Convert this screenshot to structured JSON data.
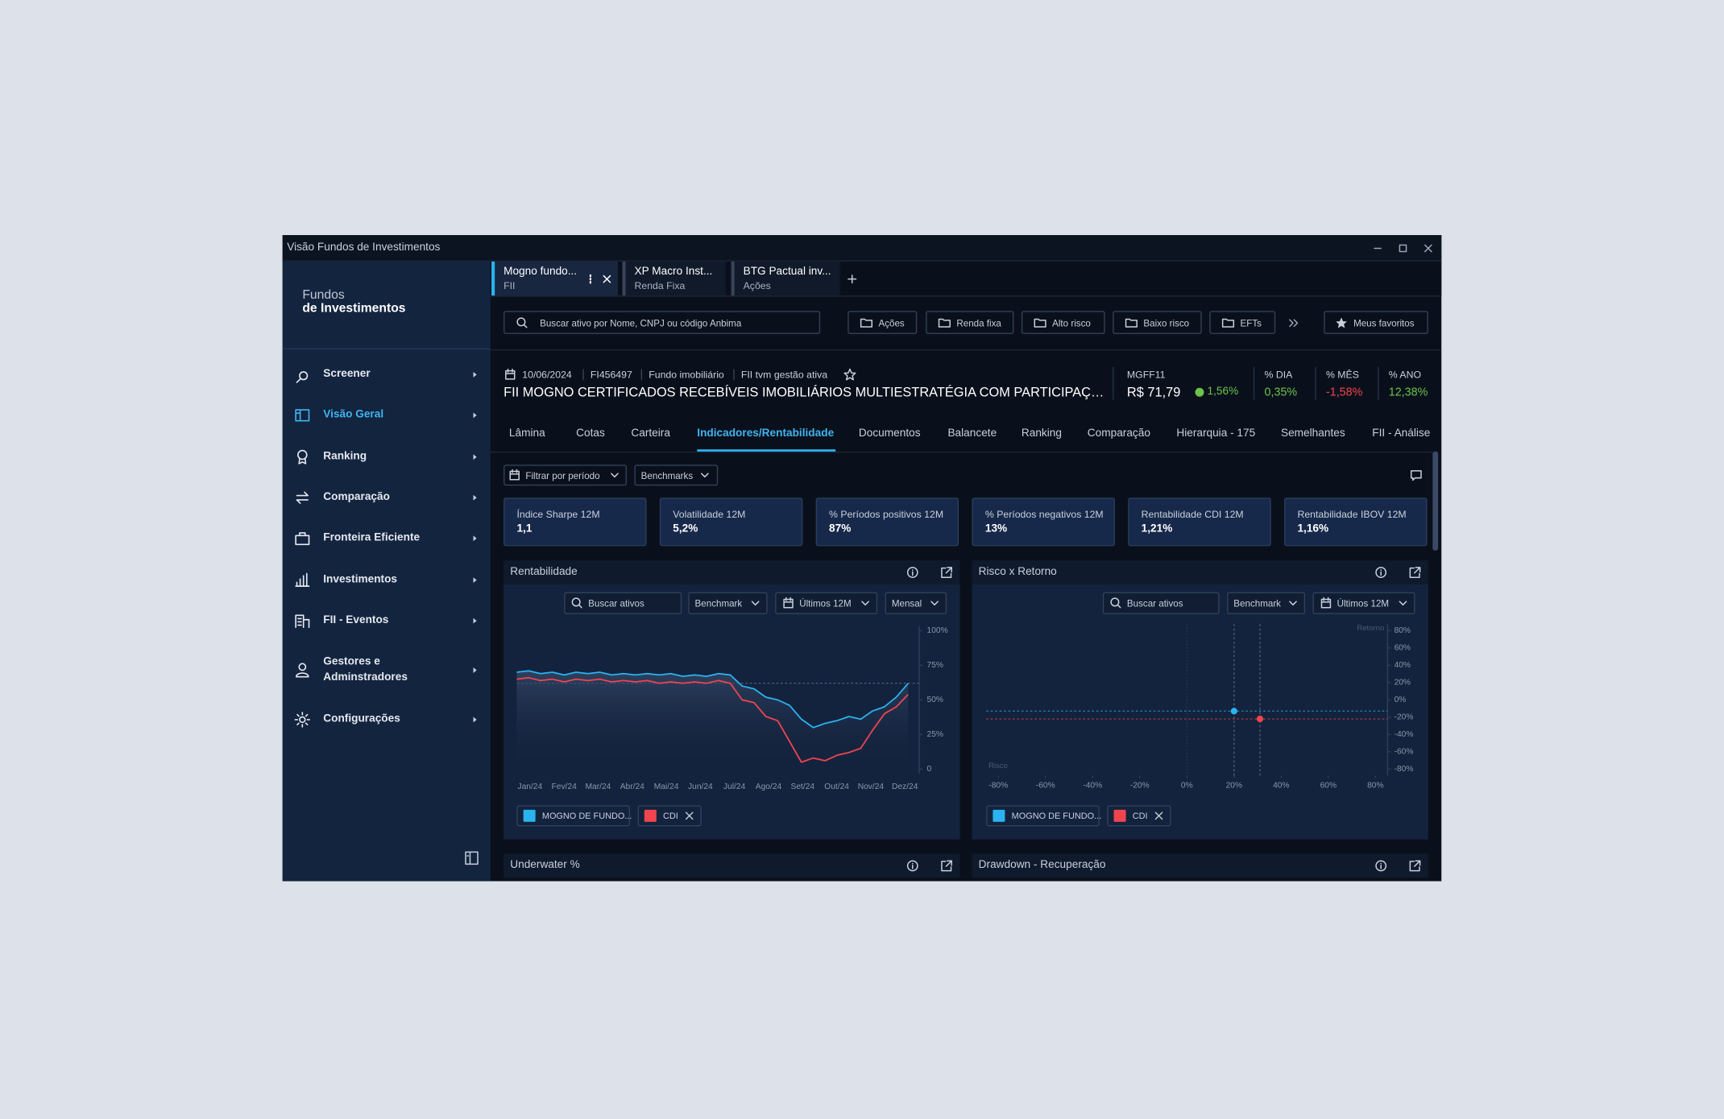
{
  "window": {
    "title": "Visão Fundos de Investimentos"
  },
  "sidebar": {
    "brand": {
      "line1": "Fundos",
      "line2": "de Investimentos"
    },
    "items": [
      {
        "label": "Screener"
      },
      {
        "label": "Visão Geral",
        "active": true
      },
      {
        "label": "Ranking"
      },
      {
        "label": "Comparação"
      },
      {
        "label": "Fronteira Eficiente"
      },
      {
        "label": "Investimentos"
      },
      {
        "label": "FII - Eventos"
      },
      {
        "label": "Gestores e Adminstradores"
      },
      {
        "label": "Configurações"
      }
    ]
  },
  "tabs": [
    {
      "title": "Mogno fundo...",
      "subtitle": "FII",
      "active": true
    },
    {
      "title": "XP Macro Inst...",
      "subtitle": "Renda Fixa"
    },
    {
      "title": "BTG Pactual inv...",
      "subtitle": "Ações"
    }
  ],
  "search": {
    "placeholder": "Buscar ativo por Nome, CNPJ ou código Anbima"
  },
  "filters": [
    "Ações",
    "Renda fixa",
    "Alto risco",
    "Baixo risco",
    "EFTs"
  ],
  "favorites": "Meus favoritos",
  "fund": {
    "date": "10/06/2024",
    "code": "FI456497",
    "category": "Fundo imobiliário",
    "management": "FII tvm gestão ativa",
    "name": "FII MOGNO CERTIFICADOS RECEBÍVEIS IMOBILIÁRIOS MULTIESTRATÉGIA COM PARTICIPAÇÃO...",
    "ticker": "MGFF11",
    "price": "R$ 71,79",
    "change": "1,56%",
    "stats": [
      {
        "label": "% DIA",
        "value": "0,35%",
        "color": "#6cc24a"
      },
      {
        "label": "% MÊS",
        "value": "-1,58%",
        "color": "#f0454f"
      },
      {
        "label": "% ANO",
        "value": "12,38%",
        "color": "#6cc24a"
      }
    ]
  },
  "nav": {
    "items": [
      "Lâmina",
      "Cotas",
      "Carteira",
      "Indicadores/Rentabilidade",
      "Documentos",
      "Balancete",
      "Ranking",
      "Comparação",
      "Hierarquia - 175",
      "Semelhantes",
      "FII - Análise"
    ],
    "active": 3
  },
  "toolbar": {
    "period": "Filtrar por período",
    "benchmarks": "Benchmarks"
  },
  "kpis": [
    {
      "label": "Índice Sharpe 12M",
      "value": "1,1"
    },
    {
      "label": "Volatilidade 12M",
      "value": "5,2%"
    },
    {
      "label": "% Períodos positivos 12M",
      "value": "87%"
    },
    {
      "label": "% Períodos negativos 12M",
      "value": "13%"
    },
    {
      "label": "Rentabilidade CDI 12M",
      "value": "1,21%"
    },
    {
      "label": "Rentabilidade IBOV 12M",
      "value": "1,16%"
    }
  ],
  "panels": [
    {
      "title": "Rentabilidade",
      "controls": [
        "Buscar ativos",
        "Benchmark",
        "Últimos 12M",
        "Mensal"
      ]
    },
    {
      "title": "Risco x Retorno",
      "controls": [
        "Buscar ativos",
        "Benchmark",
        "Últimos 12M"
      ]
    },
    {
      "title": "Underwater %"
    },
    {
      "title": "Drawdown - Recuperação"
    }
  ],
  "chart_data": [
    {
      "type": "line",
      "categories": [
        "Jan/24",
        null,
        null,
        "Fev/24",
        null,
        null,
        "Mar/24",
        null,
        null,
        "Abr/24",
        null,
        null,
        "Mai/24",
        null,
        null,
        "Jun/24",
        null,
        null,
        "Jul/24",
        null,
        null,
        "Ago/24",
        null,
        null,
        "Set/24",
        null,
        null,
        "Out/24",
        null,
        null,
        "Nov/24",
        null,
        null,
        "Dez/24"
      ],
      "series": [
        {
          "name": "MOGNO DE FUNDO...",
          "color": "#2bb3f0",
          "values": [
            70,
            71,
            69,
            70,
            68,
            70,
            69,
            70,
            68,
            69,
            68,
            69,
            68,
            69,
            67,
            68,
            67,
            69,
            68,
            60,
            58,
            52,
            50,
            46,
            36,
            30,
            33,
            35,
            38,
            36,
            42,
            45,
            52,
            62
          ]
        },
        {
          "name": "CDI",
          "color": "#f0454f",
          "values": [
            65,
            66,
            64,
            65,
            63,
            65,
            64,
            65,
            63,
            64,
            63,
            64,
            62,
            63,
            62,
            63,
            62,
            64,
            62,
            50,
            48,
            38,
            35,
            20,
            5,
            8,
            6,
            10,
            12,
            15,
            28,
            40,
            45,
            54
          ]
        }
      ],
      "reference_line": 62,
      "ylim": [
        0,
        100
      ],
      "yticks": [
        0,
        {
          "value": 25,
          "label": "25%"
        },
        {
          "value": 50,
          "label": "50%"
        },
        {
          "value": 75,
          "label": "75%"
        },
        {
          "value": 100,
          "label": "100%"
        }
      ]
    },
    {
      "type": "scatter",
      "x_label": "Risco",
      "y_label": "Retorno",
      "series": [
        {
          "name": "MOGNO DE FUNDO...",
          "color": "#2bb3f0",
          "x": [
            20
          ],
          "values": [
            -13
          ]
        },
        {
          "name": "CDI",
          "color": "#f0454f",
          "x": [
            31
          ],
          "values": [
            -22
          ]
        }
      ],
      "xlim": [
        -80,
        80
      ],
      "xticks": [
        {
          "value": -80,
          "label": "-80%"
        },
        {
          "value": -60,
          "label": "-60%"
        },
        {
          "value": -40,
          "label": "-40%"
        },
        {
          "value": -20,
          "label": "-20%"
        },
        {
          "value": 0,
          "label": "0%"
        },
        {
          "value": 20,
          "label": "20%"
        },
        {
          "value": 40,
          "label": "40%"
        },
        {
          "value": 60,
          "label": "60%"
        },
        {
          "value": 80,
          "label": "80%"
        }
      ],
      "ylim": [
        -80,
        80
      ],
      "yticks": [
        {
          "value": 80,
          "label": "80%"
        },
        {
          "value": 60,
          "label": "60%"
        },
        {
          "value": 40,
          "label": "40%"
        },
        {
          "value": 20,
          "label": "20%"
        },
        {
          "value": 0,
          "label": "0%"
        },
        {
          "value": -20,
          "label": "-20%"
        },
        {
          "value": -40,
          "label": "-40%"
        },
        {
          "value": -60,
          "label": "-60%"
        },
        {
          "value": -80,
          "label": "-80%"
        }
      ]
    }
  ]
}
